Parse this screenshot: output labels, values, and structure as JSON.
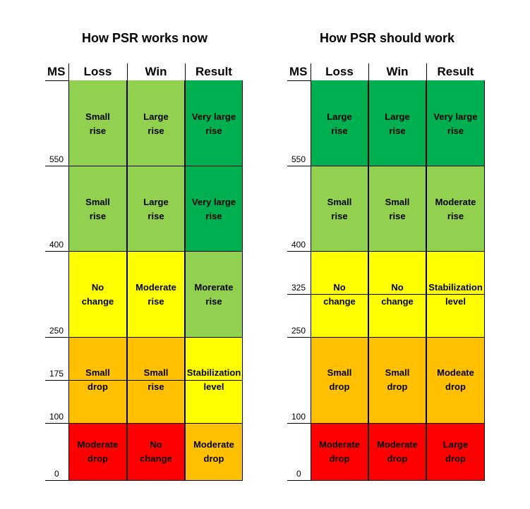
{
  "colors": {
    "dark_green": "#00B050",
    "light_green": "#92D050",
    "yellow": "#FFFF00",
    "orange": "#FFC000",
    "red": "#FF0000"
  },
  "panels": [
    {
      "title": "How PSR works now",
      "headers": {
        "ms": "MS",
        "loss": "Loss",
        "win": "Win",
        "result": "Result"
      },
      "ticks": [
        "550",
        "400",
        "250",
        "175",
        "100",
        "0"
      ],
      "rows": [
        {
          "loss": {
            "line1": "Small",
            "line2": "rise",
            "color": "light_green"
          },
          "win": {
            "line1": "Large",
            "line2": "rise",
            "color": "light_green"
          },
          "result": {
            "line1": "Very large",
            "line2": "rise",
            "color": "dark_green"
          }
        },
        {
          "loss": {
            "line1": "Small",
            "line2": "rise",
            "color": "light_green"
          },
          "win": {
            "line1": "Large",
            "line2": "rise",
            "color": "light_green"
          },
          "result": {
            "line1": "Very large",
            "line2": "rise",
            "color": "dark_green"
          }
        },
        {
          "loss": {
            "line1": "No",
            "line2": "change",
            "color": "yellow"
          },
          "win": {
            "line1": "Moderate",
            "line2": "rise",
            "color": "yellow"
          },
          "result": {
            "line1": "Morerate",
            "line2": "rise",
            "color": "light_green"
          }
        },
        {
          "loss": {
            "line1": "Small",
            "line2": "drop",
            "color": "orange"
          },
          "win": {
            "line1": "Small",
            "line2": "rise",
            "color": "orange"
          },
          "result": {
            "line1": "Stabilization",
            "line2": "level",
            "color": "yellow"
          }
        },
        {
          "loss": {
            "line1": "Moderate",
            "line2": "drop",
            "color": "red"
          },
          "win": {
            "line1": "No",
            "line2": "change",
            "color": "red"
          },
          "result": {
            "line1": "Moderate",
            "line2": "drop",
            "color": "orange"
          }
        }
      ]
    },
    {
      "title": "How PSR should work",
      "headers": {
        "ms": "MS",
        "loss": "Loss",
        "win": "Win",
        "result": "Result"
      },
      "ticks": [
        "550",
        "400",
        "325",
        "250",
        "100",
        "0"
      ],
      "rows": [
        {
          "loss": {
            "line1": "Large",
            "line2": "rise",
            "color": "dark_green"
          },
          "win": {
            "line1": "Large",
            "line2": "rise",
            "color": "dark_green"
          },
          "result": {
            "line1": "Very large",
            "line2": "rise",
            "color": "dark_green"
          }
        },
        {
          "loss": {
            "line1": "Small",
            "line2": "rise",
            "color": "light_green"
          },
          "win": {
            "line1": "Small",
            "line2": "rise",
            "color": "light_green"
          },
          "result": {
            "line1": "Moderate",
            "line2": "rise",
            "color": "light_green"
          }
        },
        {
          "loss": {
            "line1": "No",
            "line2": "change",
            "color": "yellow"
          },
          "win": {
            "line1": "No",
            "line2": "change",
            "color": "yellow"
          },
          "result": {
            "line1": "Stabilization",
            "line2": "level",
            "color": "yellow"
          }
        },
        {
          "loss": {
            "line1": "Small",
            "line2": "drop",
            "color": "orange"
          },
          "win": {
            "line1": "Small",
            "line2": "drop",
            "color": "orange"
          },
          "result": {
            "line1": "Modeate",
            "line2": "drop",
            "color": "orange"
          }
        },
        {
          "loss": {
            "line1": "Moderate",
            "line2": "drop",
            "color": "red"
          },
          "win": {
            "line1": "Moderate",
            "line2": "drop",
            "color": "red"
          },
          "result": {
            "line1": "Large",
            "line2": "drop",
            "color": "red"
          }
        }
      ]
    }
  ]
}
